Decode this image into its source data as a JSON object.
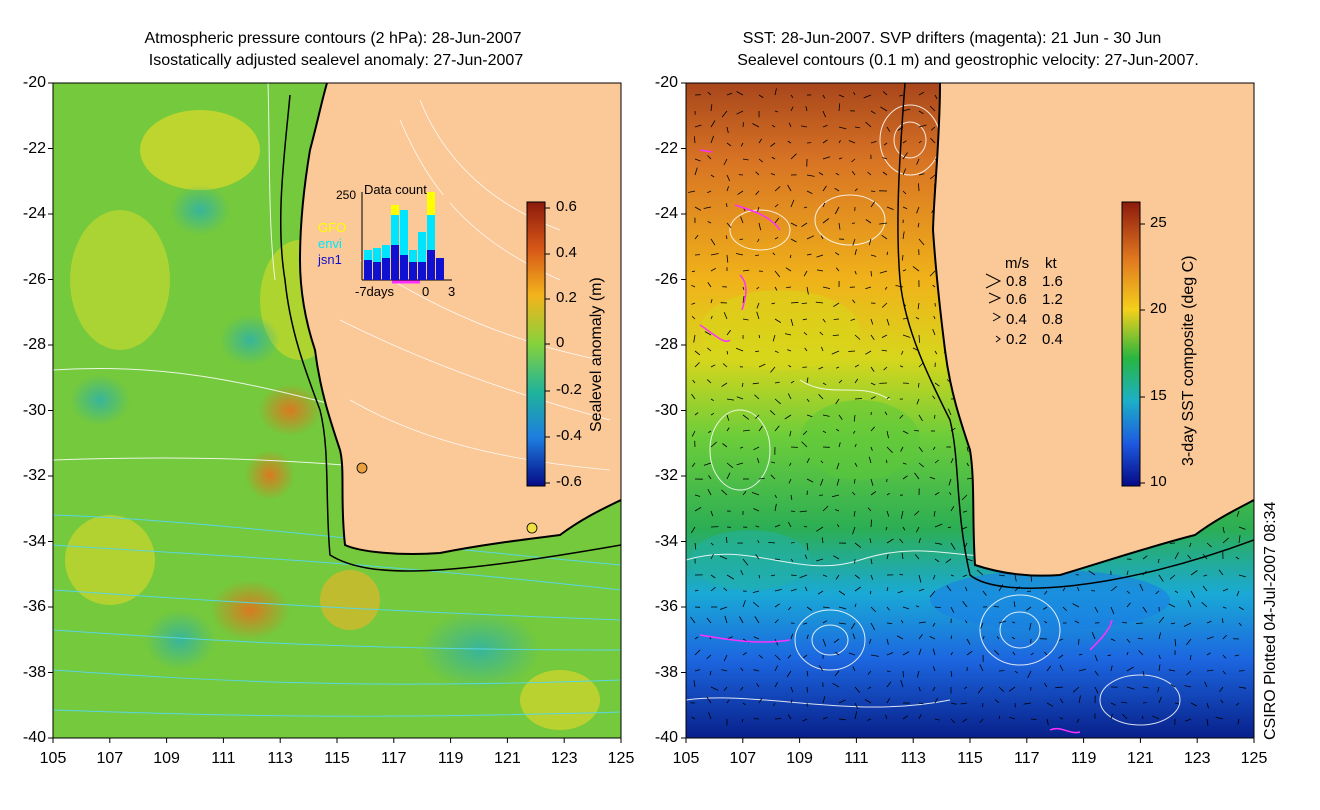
{
  "left_panel": {
    "title_line1": "Atmospheric pressure contours (2 hPa): 28-Jun-2007",
    "title_line2": "Isostatically adjusted sealevel anomaly: 27-Jun-2007",
    "colorbar_label": "Sealevel anomaly (m)",
    "colorbar_ticks": [
      "0.6",
      "0.4",
      "0.2",
      "0",
      "-0.2",
      "-0.4",
      "-0.6"
    ],
    "inset": {
      "title": "Data count",
      "ymax_label": "250",
      "legend": [
        {
          "label": "GFO",
          "color": "#ffff00"
        },
        {
          "label": "envi",
          "color": "#00e5ff"
        },
        {
          "label": "jsn1",
          "color": "#1010d0"
        }
      ],
      "x_labels": [
        "-7days",
        "0",
        "3"
      ]
    }
  },
  "right_panel": {
    "title_line1": "SST: 28-Jun-2007. SVP drifters (magenta): 21 Jun - 30 Jun",
    "title_line2": "Sealevel contours (0.1 m) and geostrophic velocity: 27-Jun-2007.",
    "colorbar_label": "3-day SST composite (deg C)",
    "colorbar_ticks": [
      "25",
      "20",
      "15",
      "10"
    ],
    "velocity_legend": {
      "header_ms": "m/s",
      "header_kt": "kt",
      "rows": [
        {
          "ms": "0.8",
          "kt": "1.6"
        },
        {
          "ms": "0.6",
          "kt": "1.2"
        },
        {
          "ms": "0.4",
          "kt": "0.8"
        },
        {
          "ms": "0.2",
          "kt": "0.4"
        }
      ]
    }
  },
  "axes": {
    "lat_ticks": [
      "-20",
      "-22",
      "-24",
      "-26",
      "-28",
      "-30",
      "-32",
      "-34",
      "-36",
      "-38",
      "-40"
    ],
    "lon_ticks": [
      "105",
      "107",
      "109",
      "111",
      "113",
      "115",
      "117",
      "119",
      "121",
      "123",
      "125"
    ]
  },
  "footer": "CSIRO Plotted 04-Jul-2007 08:34",
  "colors": {
    "land": "#fbc898",
    "coastline": "#000000",
    "ssl_green": "#6dc83a",
    "sst_orange": "#e89a20"
  }
}
